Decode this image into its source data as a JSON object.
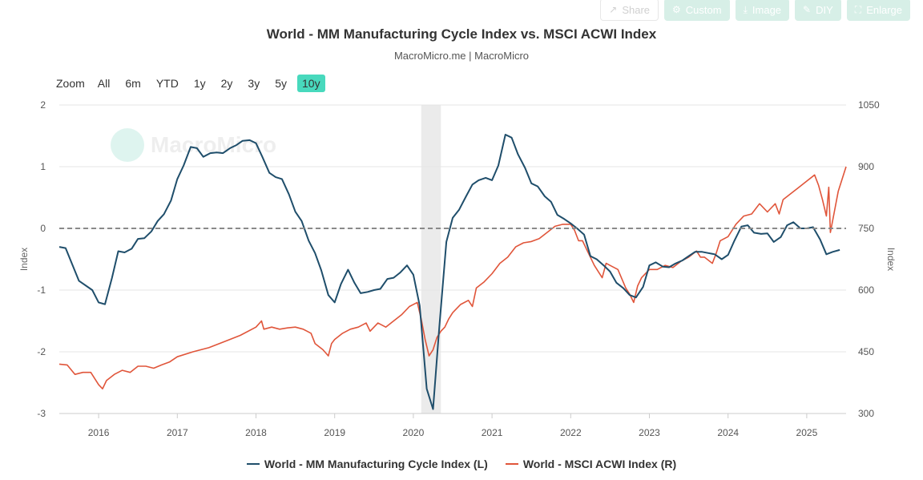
{
  "toolbar": {
    "share": "Share",
    "custom": "Custom",
    "image": "Image",
    "diy": "DIY",
    "enlarge": "Enlarge"
  },
  "range_selector": {
    "zoom_label": "Zoom",
    "buttons": [
      "All",
      "6m",
      "YTD",
      "1y",
      "2y",
      "3y",
      "5y",
      "10y"
    ],
    "active": "10y"
  },
  "watermark": "MacroMicro",
  "colors": {
    "mfg": "#1f4e6b",
    "acwi": "#e0553a",
    "shade": "#ebebeb",
    "active_btn": "#48d9bd"
  },
  "chart_data": {
    "type": "line",
    "title": "World - MM Manufacturing Cycle Index vs. MSCI ACWI Index",
    "subtitle": "MacroMicro.me | MacroMicro",
    "ylabel_left": "Index",
    "ylabel_right": "Index",
    "x_ticks": [
      "2016",
      "2017",
      "2018",
      "2019",
      "2020",
      "2021",
      "2022",
      "2023",
      "2024",
      "2025"
    ],
    "xlim": [
      2015.5,
      2025.5
    ],
    "y_left": {
      "lim": [
        -3,
        2
      ],
      "ticks": [
        "2",
        "1",
        "0",
        "-1",
        "-2",
        "-3"
      ]
    },
    "y_right": {
      "lim": [
        300,
        1050
      ],
      "ticks": [
        "1050",
        "900",
        "750",
        "600",
        "450",
        "300"
      ]
    },
    "reference_line_left": 0,
    "shaded_period": [
      2020.1,
      2020.35
    ],
    "grid": true,
    "legend_position": "bottom",
    "series": [
      {
        "name": "World - MM Manufacturing Cycle Index (L)",
        "axis": "left",
        "x": [
          2015.5,
          2015.58,
          2015.67,
          2015.75,
          2015.92,
          2016.0,
          2016.08,
          2016.17,
          2016.25,
          2016.33,
          2016.42,
          2016.5,
          2016.58,
          2016.67,
          2016.75,
          2016.83,
          2016.92,
          2017.0,
          2017.08,
          2017.17,
          2017.25,
          2017.33,
          2017.42,
          2017.5,
          2017.58,
          2017.67,
          2017.75,
          2017.83,
          2017.92,
          2018.0,
          2018.08,
          2018.17,
          2018.25,
          2018.33,
          2018.42,
          2018.5,
          2018.58,
          2018.67,
          2018.75,
          2018.83,
          2018.92,
          2019.0,
          2019.08,
          2019.17,
          2019.25,
          2019.33,
          2019.42,
          2019.5,
          2019.58,
          2019.67,
          2019.75,
          2019.83,
          2019.92,
          2020.0,
          2020.08,
          2020.17,
          2020.25,
          2020.33,
          2020.42,
          2020.5,
          2020.58,
          2020.67,
          2020.75,
          2020.83,
          2020.92,
          2021.0,
          2021.08,
          2021.17,
          2021.25,
          2021.33,
          2021.42,
          2021.5,
          2021.58,
          2021.67,
          2021.75,
          2021.83,
          2021.92,
          2022.0,
          2022.08,
          2022.17,
          2022.25,
          2022.33,
          2022.42,
          2022.5,
          2022.58,
          2022.67,
          2022.75,
          2022.83,
          2022.92,
          2023.0,
          2023.08,
          2023.17,
          2023.25,
          2023.33,
          2023.42,
          2023.5,
          2023.58,
          2023.67,
          2023.75,
          2023.83,
          2023.92,
          2024.0,
          2024.08,
          2024.17,
          2024.25,
          2024.33,
          2024.42,
          2024.5,
          2024.58,
          2024.67,
          2024.75,
          2024.83,
          2024.92,
          2025.0,
          2025.08,
          2025.17,
          2025.25,
          2025.33,
          2025.42
        ],
        "values": [
          -0.3,
          -0.32,
          -0.6,
          -0.85,
          -1.0,
          -1.2,
          -1.23,
          -0.8,
          -0.37,
          -0.39,
          -0.33,
          -0.17,
          -0.16,
          -0.05,
          0.12,
          0.23,
          0.45,
          0.8,
          1.02,
          1.32,
          1.3,
          1.16,
          1.22,
          1.23,
          1.22,
          1.3,
          1.35,
          1.42,
          1.43,
          1.38,
          1.16,
          0.9,
          0.83,
          0.8,
          0.55,
          0.27,
          0.12,
          -0.2,
          -0.4,
          -0.68,
          -1.08,
          -1.2,
          -0.9,
          -0.67,
          -0.88,
          -1.05,
          -1.03,
          -1.0,
          -0.98,
          -0.82,
          -0.8,
          -0.72,
          -0.6,
          -0.75,
          -1.25,
          -2.6,
          -2.93,
          -1.6,
          -0.22,
          0.17,
          0.3,
          0.52,
          0.71,
          0.78,
          0.82,
          0.78,
          1.02,
          1.52,
          1.47,
          1.2,
          0.98,
          0.73,
          0.68,
          0.52,
          0.43,
          0.22,
          0.15,
          0.08,
          0.0,
          -0.1,
          -0.45,
          -0.5,
          -0.6,
          -0.7,
          -0.88,
          -0.97,
          -1.08,
          -1.12,
          -0.95,
          -0.6,
          -0.55,
          -0.62,
          -0.63,
          -0.57,
          -0.52,
          -0.45,
          -0.38,
          -0.38,
          -0.4,
          -0.42,
          -0.5,
          -0.43,
          -0.2,
          0.03,
          0.05,
          -0.07,
          -0.09,
          -0.08,
          -0.22,
          -0.14,
          0.05,
          0.1,
          0.0,
          0.0,
          0.02,
          -0.18,
          -0.42,
          -0.38,
          -0.35
        ]
      },
      {
        "name": "World - MSCI ACWI Index (R)",
        "axis": "right",
        "x": [
          2015.5,
          2015.6,
          2015.7,
          2015.8,
          2015.9,
          2016.0,
          2016.05,
          2016.1,
          2016.2,
          2016.3,
          2016.4,
          2016.5,
          2016.6,
          2016.7,
          2016.8,
          2016.9,
          2017.0,
          2017.2,
          2017.4,
          2017.6,
          2017.8,
          2018.0,
          2018.07,
          2018.1,
          2018.2,
          2018.3,
          2018.4,
          2018.5,
          2018.6,
          2018.7,
          2018.75,
          2018.85,
          2018.92,
          2018.96,
          2019.0,
          2019.1,
          2019.2,
          2019.3,
          2019.4,
          2019.45,
          2019.55,
          2019.65,
          2019.75,
          2019.85,
          2019.95,
          2020.05,
          2020.1,
          2020.15,
          2020.2,
          2020.25,
          2020.3,
          2020.35,
          2020.4,
          2020.45,
          2020.5,
          2020.6,
          2020.7,
          2020.75,
          2020.8,
          2020.9,
          2021.0,
          2021.1,
          2021.2,
          2021.3,
          2021.4,
          2021.5,
          2021.6,
          2021.7,
          2021.8,
          2021.9,
          2022.0,
          2022.05,
          2022.1,
          2022.15,
          2022.2,
          2022.3,
          2022.4,
          2022.45,
          2022.5,
          2022.6,
          2022.7,
          2022.75,
          2022.8,
          2022.85,
          2022.9,
          2023.0,
          2023.1,
          2023.2,
          2023.3,
          2023.4,
          2023.5,
          2023.6,
          2023.65,
          2023.7,
          2023.8,
          2023.85,
          2023.9,
          2024.0,
          2024.1,
          2024.2,
          2024.3,
          2024.4,
          2024.5,
          2024.6,
          2024.65,
          2024.7,
          2024.8,
          2024.9,
          2025.0,
          2025.1,
          2025.15,
          2025.2,
          2025.25,
          2025.28,
          2025.3,
          2025.35,
          2025.4,
          2025.45,
          2025.5
        ],
        "values": [
          420,
          418,
          395,
          400,
          400,
          370,
          360,
          380,
          395,
          405,
          400,
          415,
          415,
          410,
          418,
          425,
          438,
          450,
          460,
          475,
          490,
          510,
          525,
          505,
          510,
          505,
          508,
          510,
          505,
          495,
          470,
          455,
          440,
          470,
          480,
          495,
          505,
          510,
          520,
          500,
          520,
          510,
          525,
          540,
          560,
          570,
          530,
          480,
          440,
          455,
          485,
          500,
          510,
          530,
          545,
          565,
          575,
          560,
          605,
          620,
          640,
          665,
          680,
          705,
          715,
          718,
          725,
          740,
          755,
          760,
          760,
          745,
          720,
          720,
          700,
          660,
          630,
          665,
          660,
          650,
          605,
          590,
          570,
          610,
          630,
          650,
          650,
          660,
          655,
          670,
          680,
          695,
          680,
          680,
          665,
          690,
          720,
          730,
          760,
          780,
          785,
          810,
          790,
          810,
          785,
          820,
          835,
          850,
          865,
          880,
          855,
          820,
          780,
          850,
          740,
          790,
          840,
          870,
          900
        ]
      }
    ]
  }
}
